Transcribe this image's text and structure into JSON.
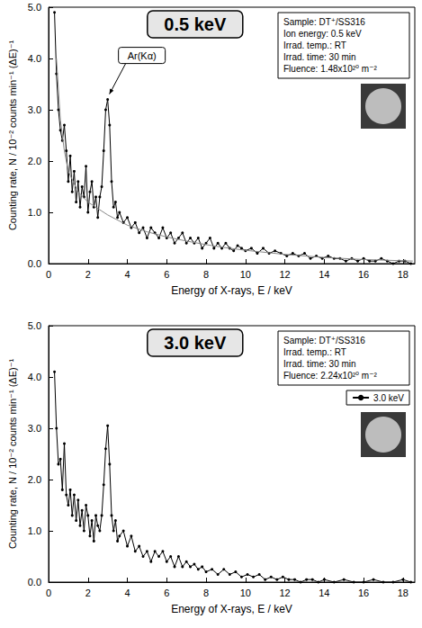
{
  "chart_data": [
    {
      "type": "line",
      "title": "0.5 keV",
      "info": [
        "Sample: DT⁺/SS316",
        "Ion energy: 0.5 keV",
        "Irrad. temp.: RT",
        "Irrad. time: 30 min",
        "Fluence: 1.48x10²⁰ m⁻²"
      ],
      "xlabel": "Energy of X-rays, E / keV",
      "ylabel": "Counting rate, N / 10⁻² counts min⁻¹ (ΔE)⁻¹",
      "xlim": [
        0,
        18.6
      ],
      "xticks": [
        0,
        2,
        4,
        6,
        8,
        10,
        12,
        14,
        16,
        18
      ],
      "ylim": [
        0,
        5
      ],
      "yticks": [
        {
          "value": 0,
          "label": "0.0"
        },
        {
          "value": 1,
          "label": "1.0"
        },
        {
          "value": 2,
          "label": "2.0"
        },
        {
          "value": 3,
          "label": "3.0"
        },
        {
          "value": 4,
          "label": "4.0"
        },
        {
          "value": 5,
          "label": "5.0"
        }
      ],
      "grid": false,
      "annotations": [
        {
          "text": "Ar(Kα)",
          "x": 3.0,
          "y": 3.2
        }
      ],
      "series": [
        {
          "color": "#000000",
          "marker": "circle",
          "line_style": "solid",
          "x": [
            0.3,
            0.4,
            0.5,
            0.6,
            0.7,
            0.8,
            0.9,
            1.0,
            1.1,
            1.2,
            1.3,
            1.4,
            1.5,
            1.6,
            1.7,
            1.8,
            1.9,
            2.0,
            2.1,
            2.2,
            2.3,
            2.4,
            2.5,
            2.6,
            2.7,
            2.8,
            2.9,
            3.0,
            3.1,
            3.2,
            3.3,
            3.4,
            3.5,
            3.6,
            3.8,
            4.0,
            4.2,
            4.4,
            4.6,
            4.8,
            5.0,
            5.2,
            5.4,
            5.6,
            5.8,
            6.0,
            6.2,
            6.4,
            6.6,
            6.8,
            7.0,
            7.2,
            7.4,
            7.6,
            7.8,
            8.0,
            8.2,
            8.4,
            8.6,
            8.8,
            9.0,
            9.2,
            9.4,
            9.6,
            9.8,
            10.0,
            10.3,
            10.6,
            10.9,
            11.2,
            11.5,
            11.8,
            12.1,
            12.4,
            12.7,
            13.0,
            13.3,
            13.6,
            13.9,
            14.2,
            14.5,
            14.8,
            15.1,
            15.4,
            15.7,
            16.0,
            16.3,
            16.6,
            16.9,
            17.2,
            17.5,
            17.8,
            18.1,
            18.4
          ],
          "values": [
            4.9,
            3.7,
            3.0,
            2.6,
            2.4,
            2.7,
            2.2,
            1.6,
            2.1,
            1.4,
            1.8,
            1.2,
            1.6,
            1.1,
            1.5,
            1.3,
            1.9,
            1.0,
            1.4,
            1.6,
            1.1,
            1.3,
            0.9,
            1.3,
            1.5,
            2.2,
            3.0,
            3.2,
            2.7,
            1.6,
            1.1,
            1.2,
            0.9,
            1.0,
            0.8,
            0.9,
            0.7,
            0.8,
            0.6,
            0.7,
            0.5,
            0.7,
            0.6,
            0.5,
            0.7,
            0.5,
            0.6,
            0.4,
            0.5,
            0.6,
            0.4,
            0.5,
            0.4,
            0.5,
            0.3,
            0.4,
            0.5,
            0.3,
            0.4,
            0.3,
            0.4,
            0.3,
            0.25,
            0.35,
            0.3,
            0.25,
            0.3,
            0.2,
            0.3,
            0.2,
            0.25,
            0.2,
            0.15,
            0.2,
            0.15,
            0.2,
            0.1,
            0.15,
            0.1,
            0.15,
            0.1,
            0.1,
            0.05,
            0.1,
            0.05,
            0.1,
            0.05,
            0.05,
            0.1,
            0.05,
            0.0,
            0.05,
            0.05,
            0.0
          ]
        },
        {
          "color": "#888888",
          "marker": "none",
          "line_style": "solid",
          "x": [
            0.4,
            0.6,
            0.8,
            1.0,
            1.5,
            2.0,
            3.0,
            4.0,
            5.0,
            6.0,
            7.0,
            8.0,
            9.0,
            10.0,
            12.0,
            14.0,
            16.0,
            18.5
          ],
          "values": [
            4.0,
            2.8,
            2.2,
            1.8,
            1.4,
            1.2,
            0.95,
            0.75,
            0.62,
            0.52,
            0.44,
            0.37,
            0.31,
            0.26,
            0.18,
            0.12,
            0.08,
            0.05
          ]
        }
      ]
    },
    {
      "type": "line",
      "title": "3.0 keV",
      "info": [
        "Sample: DT⁺/SS316",
        "Irrad. temp.: RT",
        "Irrad. time: 30 min",
        "Fluence: 2.24x10²⁰ m⁻²"
      ],
      "xlabel": "Energy of X-rays, E / keV",
      "ylabel": "Counting rate, N / 10⁻² counts min⁻¹ (ΔE)⁻¹",
      "xlim": [
        0,
        18.6
      ],
      "xticks": [
        0,
        2,
        4,
        6,
        8,
        10,
        12,
        14,
        16,
        18
      ],
      "ylim": [
        0,
        5
      ],
      "yticks": [
        {
          "value": 0,
          "label": "0.0"
        },
        {
          "value": 1,
          "label": "1.0"
        },
        {
          "value": 2,
          "label": "2.0"
        },
        {
          "value": 3,
          "label": "3.0"
        },
        {
          "value": 4,
          "label": "4.0"
        },
        {
          "value": 5,
          "label": "5.0"
        }
      ],
      "grid": false,
      "legend": "upper right",
      "series": [
        {
          "name": "3.0 keV",
          "color": "#000000",
          "marker": "circle",
          "line_style": "solid",
          "x": [
            0.3,
            0.4,
            0.5,
            0.6,
            0.7,
            0.8,
            0.9,
            1.0,
            1.1,
            1.2,
            1.3,
            1.4,
            1.5,
            1.6,
            1.7,
            1.8,
            1.9,
            2.0,
            2.1,
            2.2,
            2.3,
            2.4,
            2.5,
            2.6,
            2.7,
            2.8,
            2.9,
            3.0,
            3.1,
            3.2,
            3.3,
            3.4,
            3.5,
            3.6,
            3.8,
            4.0,
            4.2,
            4.4,
            4.6,
            4.8,
            5.0,
            5.2,
            5.4,
            5.6,
            5.8,
            6.0,
            6.2,
            6.4,
            6.6,
            6.8,
            7.0,
            7.2,
            7.4,
            7.6,
            7.8,
            8.0,
            8.3,
            8.6,
            8.9,
            9.2,
            9.5,
            9.8,
            10.1,
            10.4,
            10.7,
            11.0,
            11.3,
            11.6,
            11.9,
            12.2,
            12.5,
            12.8,
            13.1,
            13.4,
            13.7,
            14.0,
            14.5,
            15.0,
            15.5,
            16.0,
            16.5,
            17.0,
            17.5,
            18.0,
            18.4
          ],
          "values": [
            4.1,
            3.0,
            2.3,
            2.4,
            1.8,
            2.7,
            1.7,
            1.5,
            1.8,
            1.3,
            1.7,
            1.2,
            1.6,
            1.1,
            1.4,
            1.0,
            1.5,
            1.3,
            0.9,
            1.2,
            0.8,
            1.3,
            1.1,
            1.0,
            1.3,
            1.9,
            2.6,
            3.05,
            2.3,
            1.3,
            1.0,
            1.2,
            0.8,
            0.9,
            1.0,
            0.7,
            0.9,
            0.6,
            0.7,
            0.5,
            0.6,
            0.4,
            0.6,
            0.5,
            0.6,
            0.4,
            0.5,
            0.3,
            0.5,
            0.3,
            0.4,
            0.3,
            0.35,
            0.25,
            0.3,
            0.2,
            0.25,
            0.15,
            0.25,
            0.15,
            0.2,
            0.1,
            0.15,
            0.1,
            0.15,
            0.05,
            0.1,
            0.05,
            0.1,
            0.05,
            0.05,
            0.0,
            0.05,
            0.05,
            0.0,
            0.05,
            0.0,
            0.05,
            0.0,
            0.0,
            0.05,
            0.0,
            0.0,
            0.05,
            0.0
          ]
        }
      ]
    }
  ]
}
